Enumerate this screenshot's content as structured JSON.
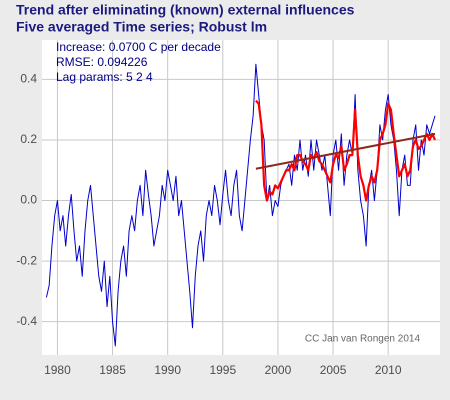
{
  "chart_data": {
    "type": "line",
    "title": "Trend after eliminating (known) external influences",
    "subtitle": "Five averaged Time series; Robust lm",
    "annotations": [
      "Increase: 0.0700 C per decade",
      "RMSE: 0.094226",
      "Lag params: 5 2 4"
    ],
    "credit": "CC Jan van Rongen 2014",
    "xlim": [
      1978.6,
      2014.7
    ],
    "ylim": [
      -0.51,
      0.53
    ],
    "xticks": [
      1980,
      1985,
      1990,
      1995,
      2000,
      2005,
      2010
    ],
    "yticks": [
      -0.4,
      -0.2,
      {
        "value": 0,
        "label": "0.0"
      },
      0.2,
      0.4
    ],
    "grid": true,
    "x": [
      1979,
      1979.25,
      1979.5,
      1979.75,
      1980,
      1980.25,
      1980.5,
      1980.75,
      1981,
      1981.25,
      1981.5,
      1981.75,
      1982,
      1982.25,
      1982.5,
      1982.75,
      1983,
      1983.25,
      1983.5,
      1983.75,
      1984,
      1984.25,
      1984.5,
      1984.75,
      1985,
      1985.25,
      1985.5,
      1985.75,
      1986,
      1986.25,
      1986.5,
      1986.75,
      1987,
      1987.25,
      1987.5,
      1987.75,
      1988,
      1988.25,
      1988.5,
      1988.75,
      1989,
      1989.25,
      1989.5,
      1989.75,
      1990,
      1990.25,
      1990.5,
      1990.75,
      1991,
      1991.25,
      1991.5,
      1991.75,
      1992,
      1992.25,
      1992.5,
      1992.75,
      1993,
      1993.25,
      1993.5,
      1993.75,
      1994,
      1994.25,
      1994.5,
      1994.75,
      1995,
      1995.25,
      1995.5,
      1995.75,
      1996,
      1996.25,
      1996.5,
      1996.75,
      1997,
      1997.25,
      1997.5,
      1997.75,
      1998,
      1998.25,
      1998.5,
      1998.75,
      1999,
      1999.25,
      1999.5,
      1999.75,
      2000,
      2000.25,
      2000.5,
      2000.75,
      2001,
      2001.25,
      2001.5,
      2001.75,
      2002,
      2002.25,
      2002.5,
      2002.75,
      2003,
      2003.25,
      2003.5,
      2003.75,
      2004,
      2004.25,
      2004.5,
      2004.75,
      2005,
      2005.25,
      2005.5,
      2005.75,
      2006,
      2006.25,
      2006.5,
      2006.75,
      2007,
      2007.25,
      2007.5,
      2007.75,
      2008,
      2008.25,
      2008.5,
      2008.75,
      2009,
      2009.25,
      2009.5,
      2009.75,
      2010,
      2010.25,
      2010.5,
      2010.75,
      2011,
      2011.25,
      2011.5,
      2011.75,
      2012,
      2012.25,
      2012.5,
      2012.75,
      2013,
      2013.25,
      2013.5,
      2013.75,
      2014,
      2014.25
    ],
    "series": [
      {
        "color": "#0000cc",
        "width": 1,
        "values": [
          -0.32,
          -0.28,
          -0.15,
          -0.05,
          0.0,
          -0.1,
          -0.05,
          -0.15,
          -0.05,
          0.02,
          -0.1,
          -0.2,
          -0.15,
          -0.25,
          -0.1,
          0.0,
          0.05,
          -0.05,
          -0.15,
          -0.25,
          -0.3,
          -0.2,
          -0.35,
          -0.25,
          -0.4,
          -0.48,
          -0.3,
          -0.2,
          -0.15,
          -0.25,
          -0.1,
          -0.05,
          -0.1,
          0.0,
          0.05,
          -0.05,
          0.1,
          0.02,
          -0.05,
          -0.15,
          -0.1,
          -0.05,
          0.05,
          0.0,
          0.1,
          0.05,
          0.0,
          0.08,
          -0.05,
          0.0,
          -0.1,
          -0.2,
          -0.3,
          -0.42,
          -0.25,
          -0.15,
          -0.1,
          -0.2,
          -0.05,
          0.0,
          -0.05,
          0.05,
          0.0,
          -0.08,
          0.02,
          0.1,
          0.0,
          -0.05,
          0.05,
          0.1,
          -0.05,
          -0.1,
          0.0,
          0.1,
          0.2,
          0.28,
          0.45,
          0.35,
          0.25,
          0.2,
          0.0,
          0.05,
          -0.05,
          0.0,
          -0.02,
          0.05,
          0.08,
          0.1,
          0.12,
          0.05,
          0.15,
          0.1,
          0.2,
          0.1,
          0.15,
          0.08,
          0.2,
          0.1,
          0.2,
          0.15,
          0.1,
          0.15,
          0.05,
          -0.05,
          0.15,
          0.2,
          0.1,
          0.22,
          0.05,
          0.15,
          0.2,
          0.15,
          0.35,
          0.1,
          0.0,
          -0.05,
          -0.15,
          0.05,
          0.1,
          0.0,
          0.1,
          0.25,
          0.2,
          0.3,
          0.35,
          0.25,
          0.2,
          0.1,
          -0.05,
          0.1,
          0.15,
          0.05,
          0.05,
          0.2,
          0.25,
          0.1,
          0.2,
          0.15,
          0.25,
          0.22,
          0.25,
          0.28
        ]
      },
      {
        "color": "#ff0000",
        "width": 2.2,
        "values": [
          null,
          null,
          null,
          null,
          null,
          null,
          null,
          null,
          null,
          null,
          null,
          null,
          null,
          null,
          null,
          null,
          null,
          null,
          null,
          null,
          null,
          null,
          null,
          null,
          null,
          null,
          null,
          null,
          null,
          null,
          null,
          null,
          null,
          null,
          null,
          null,
          null,
          null,
          null,
          null,
          null,
          null,
          null,
          null,
          null,
          null,
          null,
          null,
          null,
          null,
          null,
          null,
          null,
          null,
          null,
          null,
          null,
          null,
          null,
          null,
          null,
          null,
          null,
          null,
          null,
          null,
          null,
          null,
          null,
          null,
          null,
          null,
          null,
          null,
          null,
          null,
          0.33,
          0.32,
          0.25,
          0.05,
          0.0,
          0.03,
          0.02,
          0.05,
          0.04,
          0.06,
          0.08,
          0.1,
          0.1,
          0.12,
          0.1,
          0.15,
          0.15,
          0.13,
          0.12,
          0.1,
          0.15,
          0.14,
          0.16,
          0.13,
          0.12,
          0.1,
          0.08,
          0.06,
          0.12,
          0.15,
          0.14,
          0.18,
          0.1,
          0.12,
          0.15,
          0.15,
          0.3,
          0.15,
          0.08,
          0.05,
          0.0,
          0.05,
          0.08,
          0.06,
          0.1,
          0.2,
          0.22,
          0.25,
          0.32,
          0.3,
          0.22,
          0.15,
          0.08,
          0.1,
          0.12,
          0.08,
          0.1,
          0.18,
          0.2,
          0.17,
          0.18,
          0.2,
          0.22,
          0.2,
          0.22,
          0.2
        ]
      },
      {
        "color": "#8b2a1a",
        "width": 2,
        "x": [
          1998,
          2014.25
        ],
        "values": [
          0.105,
          0.22
        ]
      }
    ]
  }
}
